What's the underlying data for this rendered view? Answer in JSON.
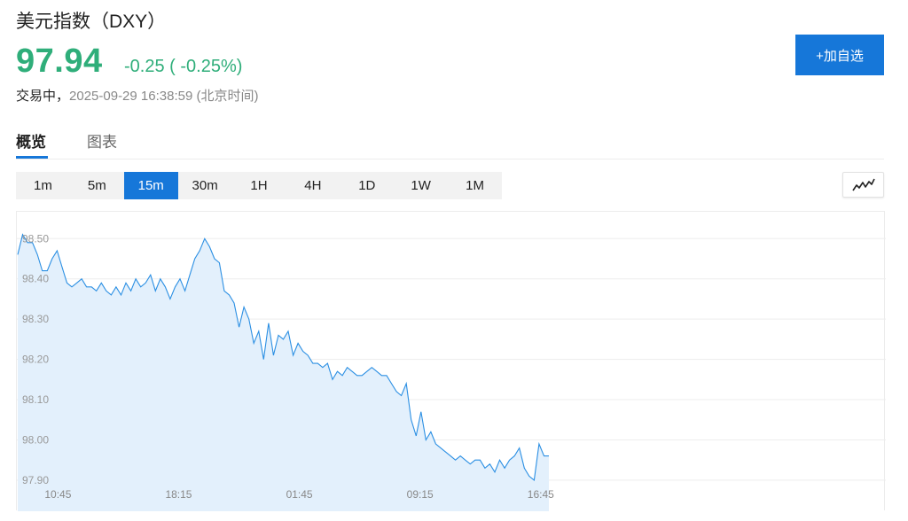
{
  "header": {
    "title": "美元指数（DXY）",
    "price": "97.94",
    "change": "-0.25 ( -0.25%)",
    "status_label": "交易中，",
    "timestamp": "2025-09-29 16:38:59 (北京时间)",
    "add_button_label": "+加自选"
  },
  "tabs": [
    {
      "label": "概览",
      "active": true
    },
    {
      "label": "图表",
      "active": false
    }
  ],
  "periods": [
    "1m",
    "5m",
    "15m",
    "30m",
    "1H",
    "4H",
    "1D",
    "1W",
    "1M"
  ],
  "active_period": "15m",
  "chart_type_icon": "line-chart-icon",
  "colors": {
    "up_green": "#2fae7a",
    "accent_blue": "#1677d9",
    "line": "#2b8fe3",
    "area_fill": "#e3f0fc"
  },
  "chart_data": {
    "type": "area",
    "title": "",
    "xlabel": "",
    "ylabel": "",
    "ylim": [
      97.88,
      98.56
    ],
    "y_ticks": [
      "98.50",
      "98.40",
      "98.30",
      "98.20",
      "98.10",
      "98.00",
      "97.90"
    ],
    "x_ticks": [
      "10:45",
      "18:15",
      "01:45",
      "09:15",
      "16:45"
    ],
    "grid": true,
    "series": [
      {
        "values": [
          98.46,
          98.51,
          98.49,
          98.49,
          98.46,
          98.42,
          98.42,
          98.45,
          98.47,
          98.43,
          98.39,
          98.38,
          98.39,
          98.4,
          98.38,
          98.38,
          98.37,
          98.39,
          98.37,
          98.36,
          98.38,
          98.36,
          98.39,
          98.37,
          98.4,
          98.38,
          98.39,
          98.41,
          98.37,
          98.4,
          98.38,
          98.35,
          98.38,
          98.4,
          98.37,
          98.41,
          98.45,
          98.47,
          98.5,
          98.48,
          98.45,
          98.44,
          98.37,
          98.36,
          98.34,
          98.28,
          98.33,
          98.3,
          98.24,
          98.27,
          98.2,
          98.29,
          98.21,
          98.26,
          98.25,
          98.27,
          98.21,
          98.24,
          98.22,
          98.21,
          98.19,
          98.19,
          98.18,
          98.19,
          98.15,
          98.17,
          98.16,
          98.18,
          98.17,
          98.16,
          98.16,
          98.17,
          98.18,
          98.17,
          98.16,
          98.16,
          98.14,
          98.12,
          98.11,
          98.14,
          98.05,
          98.01,
          98.07,
          98.0,
          98.02,
          97.99,
          97.98,
          97.97,
          97.96,
          97.95,
          97.96,
          97.95,
          97.94,
          97.95,
          97.95,
          97.93,
          97.94,
          97.92,
          97.95,
          97.93,
          97.95,
          97.96,
          97.98,
          97.93,
          97.91,
          97.9,
          97.99,
          97.96,
          97.96
        ]
      }
    ]
  }
}
